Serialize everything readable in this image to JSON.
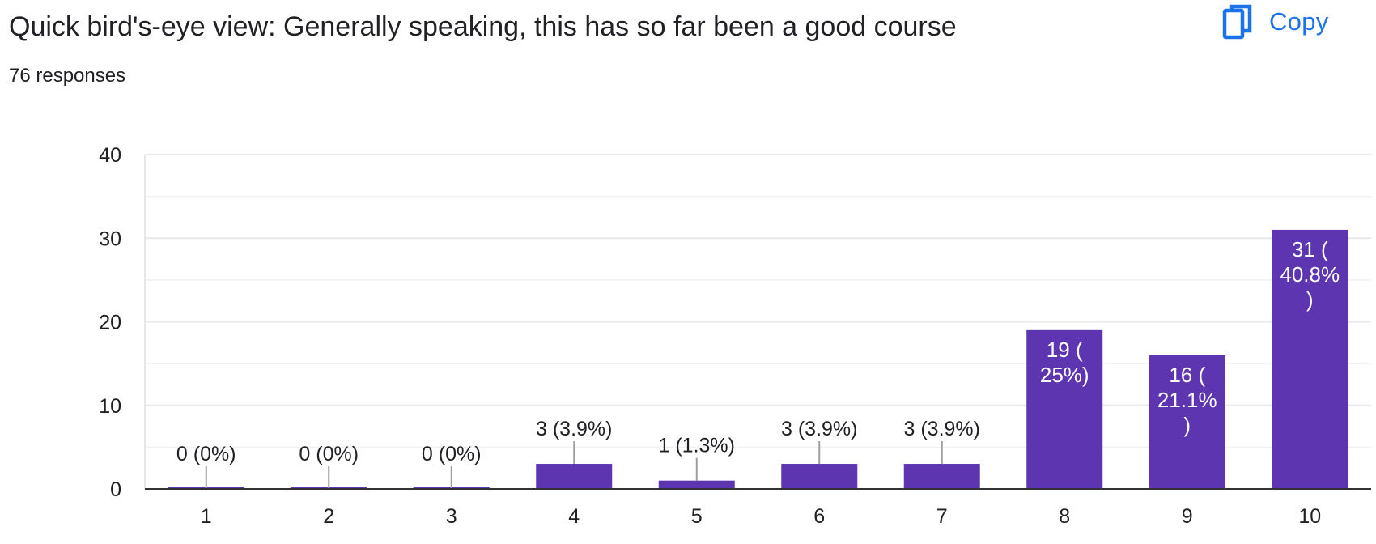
{
  "header": {
    "title": "Quick bird's-eye view: Generally speaking, this has so far been a good course",
    "responses": "76 responses",
    "copy_label": "Copy",
    "copy_icon": "copy-icon"
  },
  "colors": {
    "bar": "#5e35b1",
    "accent": "#1a73e8",
    "grid": "#e8e8e8",
    "axis": "#333333",
    "text": "#202124",
    "bar_label_inside": "#ffffff"
  },
  "chart_data": {
    "type": "bar",
    "categories": [
      "1",
      "2",
      "3",
      "4",
      "5",
      "6",
      "7",
      "8",
      "9",
      "10"
    ],
    "values": [
      0,
      0,
      0,
      3,
      1,
      3,
      3,
      19,
      16,
      31
    ],
    "labels": [
      [
        "0 (0%)"
      ],
      [
        "0 (0%)"
      ],
      [
        "0 (0%)"
      ],
      [
        "3 (3.9%)"
      ],
      [
        "1 (1.3%)"
      ],
      [
        "3 (3.9%)"
      ],
      [
        "3 (3.9%)"
      ],
      [
        "19 (",
        "25%)"
      ],
      [
        "16 (",
        "21.1%",
        ")"
      ],
      [
        "31 (",
        "40.8%",
        ")"
      ]
    ],
    "label_inside": [
      false,
      false,
      false,
      false,
      false,
      false,
      false,
      true,
      true,
      true
    ],
    "yticks": [
      0,
      10,
      20,
      30,
      40
    ],
    "ylim": [
      0,
      40
    ],
    "grid": true,
    "title": "",
    "xlabel": "",
    "ylabel": ""
  }
}
